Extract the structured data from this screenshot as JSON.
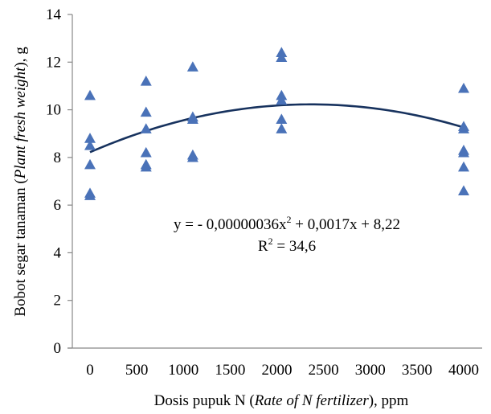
{
  "chart_data": {
    "type": "scatter",
    "title": "",
    "xlabel": {
      "plain": "Dosis pupuk N (",
      "italic": "Rate of N fertilizer",
      "suffix": "), ppm"
    },
    "ylabel": {
      "plain": "Bobot segar tanaman (",
      "italic": "Plant fresh weight",
      "suffix": "), g"
    },
    "xlim": [
      -100,
      4150
    ],
    "ylim": [
      0,
      14
    ],
    "xticks": [
      "0",
      "500",
      "1000",
      "1500",
      "2000",
      "2500",
      "3000",
      "3500",
      "4000"
    ],
    "xtick_values": [
      0,
      500,
      1000,
      1500,
      2000,
      2500,
      3000,
      3500,
      4000
    ],
    "yticks": [
      "0",
      "2",
      "4",
      "6",
      "8",
      "10",
      "12",
      "14"
    ],
    "ytick_values": [
      0,
      2,
      4,
      6,
      8,
      10,
      12,
      14
    ],
    "grid": false,
    "marker_color": "#4a72b8",
    "line_color": "#17325e",
    "series": [
      {
        "marker": "triangle",
        "points": [
          [
            0,
            10.6
          ],
          [
            0,
            8.8
          ],
          [
            0,
            8.5
          ],
          [
            0,
            7.7
          ],
          [
            0,
            6.5
          ],
          [
            0,
            6.4
          ],
          [
            600,
            11.2
          ],
          [
            600,
            9.9
          ],
          [
            600,
            9.2
          ],
          [
            600,
            8.2
          ],
          [
            600,
            7.7
          ],
          [
            600,
            7.6
          ],
          [
            1100,
            11.8
          ],
          [
            1100,
            9.7
          ],
          [
            1100,
            9.6
          ],
          [
            1100,
            8.1
          ],
          [
            1100,
            8.0
          ],
          [
            2050,
            12.4
          ],
          [
            2050,
            12.2
          ],
          [
            2050,
            10.6
          ],
          [
            2050,
            10.4
          ],
          [
            2050,
            9.6
          ],
          [
            2050,
            9.2
          ],
          [
            4000,
            10.9
          ],
          [
            4000,
            9.3
          ],
          [
            4000,
            9.2
          ],
          [
            4000,
            8.3
          ],
          [
            4000,
            8.2
          ],
          [
            4000,
            7.6
          ],
          [
            4000,
            6.6
          ]
        ]
      }
    ],
    "trendline": {
      "type": "polynomial",
      "coefficients": {
        "a": -3.6e-07,
        "b": 0.0017,
        "c": 8.22
      },
      "x_range": [
        0,
        4000
      ]
    },
    "annotations": {
      "equation": {
        "prefix": "y = - 0,00000036x",
        "sup1": "2",
        "mid": " + 0,0017x + 8,22"
      },
      "r2": {
        "prefix": "R",
        "sup": "2",
        "suffix": " = 34,6"
      }
    }
  }
}
